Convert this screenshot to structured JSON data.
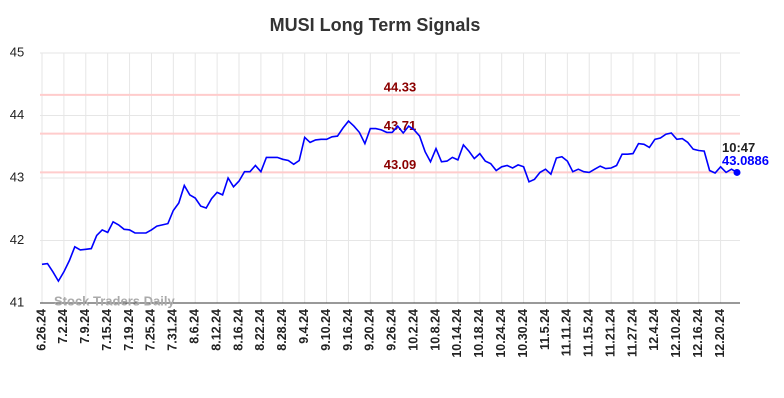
{
  "chart_data": {
    "type": "line",
    "title": "MUSI Long Term Signals",
    "watermark": "Stock Traders Daily",
    "categories": [
      "6.26.24",
      null,
      null,
      null,
      "7.2.24",
      null,
      null,
      null,
      "7.9.24",
      null,
      null,
      null,
      "7.15.24",
      null,
      null,
      null,
      "7.19.24",
      null,
      null,
      null,
      "7.25.24",
      null,
      null,
      null,
      "7.31.24",
      null,
      null,
      null,
      "8.6.24",
      null,
      null,
      null,
      "8.12.24",
      null,
      null,
      null,
      "8.16.24",
      null,
      null,
      null,
      "8.22.24",
      null,
      null,
      null,
      "8.28.24",
      null,
      null,
      null,
      "9.4.24",
      null,
      null,
      null,
      "9.10.24",
      null,
      null,
      null,
      "9.16.24",
      null,
      null,
      null,
      "9.20.24",
      null,
      null,
      null,
      "9.26.24",
      null,
      null,
      null,
      "10.2.24",
      null,
      null,
      null,
      "10.8.24",
      null,
      null,
      null,
      "10.14.24",
      null,
      null,
      null,
      "10.18.24",
      null,
      null,
      null,
      "10.24.24",
      null,
      null,
      null,
      "10.30.24",
      null,
      null,
      null,
      "11.5.24",
      null,
      null,
      null,
      "11.11.24",
      null,
      null,
      null,
      "11.15.24",
      null,
      null,
      null,
      "11.21.24",
      null,
      null,
      null,
      "11.27.24",
      null,
      null,
      null,
      "12.4.24",
      null,
      null,
      null,
      "12.10.24",
      null,
      null,
      null,
      "12.16.24",
      null,
      null,
      null,
      "12.20.24",
      null,
      null,
      null
    ],
    "values": [
      41.62,
      41.63,
      41.5,
      41.35,
      41.5,
      41.68,
      41.9,
      41.85,
      41.86,
      41.87,
      42.08,
      42.17,
      42.13,
      42.3,
      42.25,
      42.18,
      42.17,
      42.12,
      42.12,
      42.12,
      42.17,
      42.23,
      42.25,
      42.27,
      42.48,
      42.6,
      42.88,
      42.73,
      42.68,
      42.55,
      42.52,
      42.67,
      42.77,
      42.73,
      43.0,
      42.86,
      42.95,
      43.1,
      43.1,
      43.2,
      43.1,
      43.33,
      43.33,
      43.33,
      43.3,
      43.28,
      43.22,
      43.28,
      43.65,
      43.57,
      43.61,
      43.62,
      43.62,
      43.66,
      43.67,
      43.8,
      43.91,
      43.83,
      43.73,
      43.55,
      43.79,
      43.79,
      43.77,
      43.73,
      43.73,
      43.83,
      43.72,
      43.83,
      43.77,
      43.67,
      43.42,
      43.26,
      43.47,
      43.26,
      43.27,
      43.33,
      43.29,
      43.53,
      43.43,
      43.31,
      43.39,
      43.27,
      43.23,
      43.12,
      43.18,
      43.2,
      43.16,
      43.21,
      43.18,
      42.94,
      42.98,
      43.09,
      43.14,
      43.06,
      43.32,
      43.34,
      43.27,
      43.1,
      43.14,
      43.1,
      43.09,
      43.14,
      43.19,
      43.15,
      43.16,
      43.2,
      43.38,
      43.38,
      43.39,
      43.55,
      43.54,
      43.49,
      43.62,
      43.64,
      43.7,
      43.72,
      43.62,
      43.63,
      43.57,
      43.46,
      43.44,
      43.43,
      43.12,
      43.08,
      43.18,
      43.09,
      43.14,
      43.0886
    ],
    "color": "#0000ff",
    "levels": [
      44.33,
      43.71,
      43.09
    ],
    "level_color": "#ffcccc",
    "last_time": "10:47",
    "ylim": [
      41,
      45
    ],
    "yticks": [
      41,
      42,
      43,
      44,
      45
    ],
    "grid": true
  }
}
